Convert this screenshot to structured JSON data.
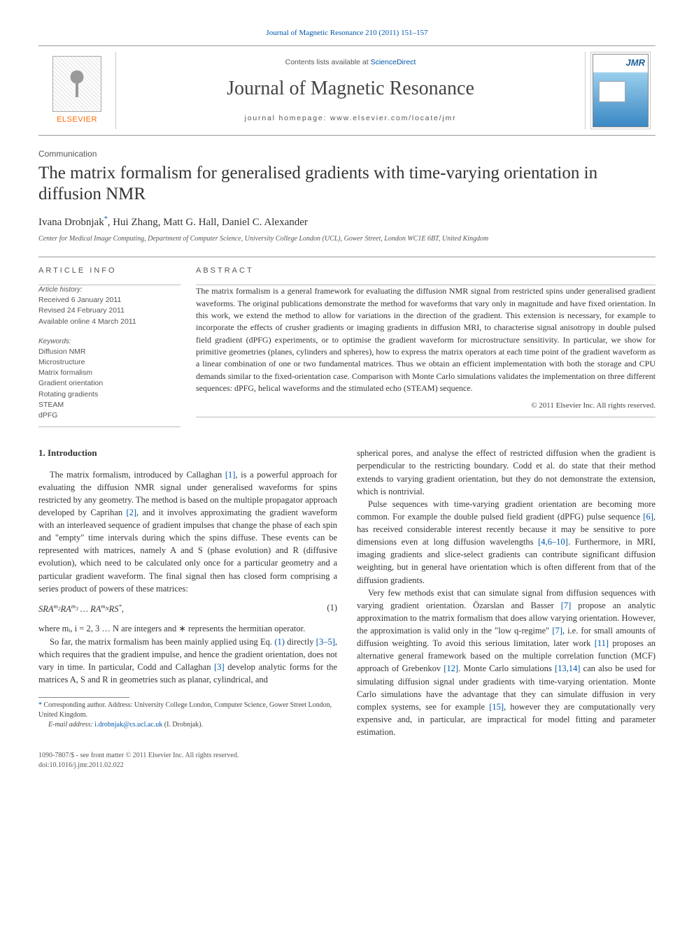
{
  "top_citation": {
    "prefix": "",
    "link": "Journal of Magnetic Resonance 210 (2011) 151–157"
  },
  "masthead": {
    "contents_line_pre": "Contents lists available at ",
    "contents_line_link": "ScienceDirect",
    "journal_name": "Journal of Magnetic Resonance",
    "homepage_line": "journal homepage: www.elsevier.com/locate/jmr",
    "publisher": "ELSEVIER",
    "cover_abbrev": "JMR"
  },
  "header": {
    "section_type": "Communication",
    "title": "The matrix formalism for generalised gradients with time-varying orientation in diffusion NMR",
    "authors": "Ivana Drobnjak *, Hui Zhang, Matt G. Hall, Daniel C. Alexander",
    "affiliation": "Center for Medical Image Computing, Department of Computer Science, University College London (UCL), Gower Street, London WC1E 6BT, United Kingdom"
  },
  "article_info": {
    "heading": "ARTICLE INFO",
    "history_label": "Article history:",
    "history": [
      "Received 6 January 2011",
      "Revised 24 February 2011",
      "Available online 4 March 2011"
    ],
    "keywords_label": "Keywords:",
    "keywords": [
      "Diffusion NMR",
      "Microstructure",
      "Matrix formalism",
      "Gradient orientation",
      "Rotating gradients",
      "STEAM",
      "dPFG"
    ]
  },
  "abstract": {
    "heading": "ABSTRACT",
    "text": "The matrix formalism is a general framework for evaluating the diffusion NMR signal from restricted spins under generalised gradient waveforms. The original publications demonstrate the method for waveforms that vary only in magnitude and have fixed orientation. In this work, we extend the method to allow for variations in the direction of the gradient. This extension is necessary, for example to incorporate the effects of crusher gradients or imaging gradients in diffusion MRI, to characterise signal anisotropy in double pulsed field gradient (dPFG) experiments, or to optimise the gradient waveform for microstructure sensitivity. In particular, we show for primitive geometries (planes, cylinders and spheres), how to express the matrix operators at each time point of the gradient waveform as a linear combination of one or two fundamental matrices. Thus we obtain an efficient implementation with both the storage and CPU demands similar to the fixed-orientation case. Comparison with Monte Carlo simulations validates the implementation on three different sequences: dPFG, helical waveforms and the stimulated echo (STEAM) sequence.",
    "copyright": "© 2011 Elsevier Inc. All rights reserved."
  },
  "intro": {
    "heading": "1. Introduction",
    "left": {
      "p1_pre": "The matrix formalism, introduced by Callaghan ",
      "ref1": "[1]",
      "p1_mid": ", is a powerful approach for evaluating the diffusion NMR signal under generalised waveforms for spins restricted by any geometry. The method is based on the multiple propagator approach developed by Caprihan ",
      "ref2": "[2]",
      "p1_post": ", and it involves approximating the gradient waveform with an interleaved sequence of gradient impulses that change the phase of each spin and \"empty\" time intervals during which the spins diffuse. These events can be represented with matrices, namely A and S (phase evolution) and R (diffusive evolution), which need to be calculated only once for a particular geometry and a particular gradient waveform. The final signal then has closed form comprising a series product of powers of these matrices:",
      "equation": "SRAᵐ²RAᵐ³ … RAᵐᴺRS*,",
      "eqnum": "(1)",
      "p2": "where mᵢ, i = 2, 3 … N are integers and ∗ represents the hermitian operator.",
      "p3_pre": "So far, the matrix formalism has been mainly applied using Eq. ",
      "ref_eq": "(1)",
      "p3_mid": " directly ",
      "ref35": "[3–5]",
      "p3_mid2": ", which requires that the gradient impulse, and hence the gradient orientation, does not vary in time. In particular, Codd and Callaghan ",
      "ref3": "[3]",
      "p3_post": " develop analytic forms for the matrices A, S and R in geometries such as planar, cylindrical, and"
    },
    "right": {
      "p1": "spherical pores, and analyse the effect of restricted diffusion when the gradient is perpendicular to the restricting boundary. Codd et al. do state that their method extends to varying gradient orientation, but they do not demonstrate the extension, which is nontrivial.",
      "p2_pre": "Pulse sequences with time-varying gradient orientation are becoming more common. For example the double pulsed field gradient (dPFG) pulse sequence ",
      "ref6": "[6]",
      "p2_mid": ", has received considerable interest recently because it may be sensitive to pore dimensions even at long diffusion wavelengths ",
      "ref4610": "[4,6–10]",
      "p2_post": ". Furthermore, in MRI, imaging gradients and slice-select gradients can contribute significant diffusion weighting, but in general have orientation which is often different from that of the diffusion gradients.",
      "p3_pre": "Very few methods exist that can simulate signal from diffusion sequences with varying gradient orientation. Özarslan and Basser ",
      "ref7a": "[7]",
      "p3_mid1": " propose an analytic approximation to the matrix formalism that does allow varying orientation. However, the approximation is valid only in the \"low q-regime\" ",
      "ref7b": "[7]",
      "p3_mid2": ", i.e. for small amounts of diffusion weighting. To avoid this serious limitation, later work ",
      "ref11": "[11]",
      "p3_mid3": " proposes an alternative general framework based on the multiple correlation function (MCF) approach of Grebenkov ",
      "ref12": "[12]",
      "p3_mid4": ". Monte Carlo simulations ",
      "ref1314": "[13,14]",
      "p3_mid5": " can also be used for simulating diffusion signal under gradients with time-varying orientation. Monte Carlo simulations have the advantage that they can simulate diffusion in very complex systems, see for example ",
      "ref15": "[15]",
      "p3_post": ", however they are computationally very expensive and, in particular, are impractical for model fitting and parameter estimation."
    }
  },
  "correspondence": {
    "note_pre": "* Corresponding author. Address: University College London, Computer Science, Gower Street London, United Kingdom.",
    "email_label": "E-mail address: ",
    "email": "i.drobnjak@cs.ucl.ac.uk",
    "email_after": " (I. Drobnjak)."
  },
  "footer": {
    "line1": "1090-7807/$ - see front matter © 2011 Elsevier Inc. All rights reserved.",
    "line2": "doi:10.1016/j.jmr.2011.02.022"
  },
  "colors": {
    "link": "#0055aa",
    "text": "#333333",
    "muted": "#555555",
    "orange": "#ff6a00",
    "rule": "#999999"
  }
}
